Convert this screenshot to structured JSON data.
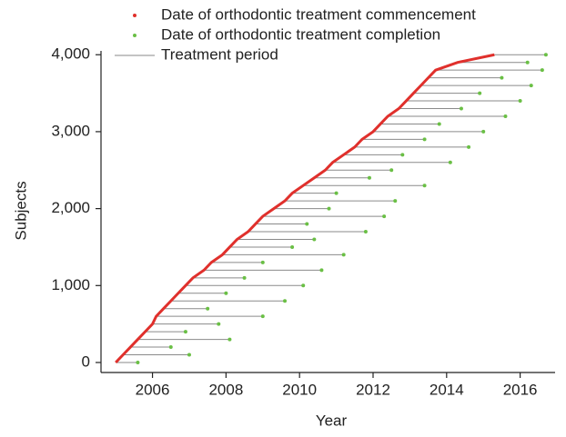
{
  "chart_data": {
    "type": "timeline",
    "x_label": "Year",
    "y_label": "Subjects",
    "xlim": [
      2004.6,
      2016.95
    ],
    "xticks": [
      2006,
      2008,
      2010,
      2012,
      2014,
      2016
    ],
    "ylim": [
      -130,
      4050
    ],
    "yticks": [
      0,
      {
        "value": 1000,
        "label": "1,000"
      },
      {
        "value": 2000,
        "label": "2,000"
      },
      {
        "value": 3000,
        "label": "3,000"
      },
      {
        "value": 4000,
        "label": "4,000"
      }
    ],
    "series": [
      {
        "name": "Date of orthodontic treatment commencement",
        "color": "#e0302c",
        "x": [
          2005.0,
          2005.2,
          2005.4,
          2005.6,
          2005.8,
          2006.0,
          2006.1,
          2006.3,
          2006.5,
          2006.7,
          2006.9,
          2007.1,
          2007.4,
          2007.6,
          2007.9,
          2008.1,
          2008.3,
          2008.6,
          2008.8,
          2009.0,
          2009.3,
          2009.6,
          2009.8,
          2010.1,
          2010.4,
          2010.7,
          2010.9,
          2011.2,
          2011.5,
          2011.7,
          2012.0,
          2012.2,
          2012.4,
          2012.7,
          2012.9,
          2013.1,
          2013.3,
          2013.5,
          2013.7,
          2014.3,
          2015.3
        ],
        "values": [
          0,
          100,
          200,
          300,
          400,
          500,
          600,
          700,
          800,
          900,
          1000,
          1100,
          1200,
          1300,
          1400,
          1500,
          1600,
          1700,
          1800,
          1900,
          2000,
          2100,
          2200,
          2300,
          2400,
          2500,
          2600,
          2700,
          2800,
          2900,
          3000,
          3100,
          3200,
          3300,
          3400,
          3500,
          3600,
          3700,
          3800,
          3900,
          4000
        ]
      },
      {
        "name": "Date of orthodontic treatment completion",
        "color": "#6abf45",
        "x": [
          2005.6,
          2007.0,
          2006.5,
          2008.1,
          2006.9,
          2007.8,
          2009.0,
          2007.5,
          2009.6,
          2008.0,
          2010.1,
          2008.5,
          2010.6,
          2009.0,
          2011.2,
          2009.8,
          2010.4,
          2011.8,
          2010.2,
          2012.3,
          2010.8,
          2012.6,
          2011.0,
          2013.4,
          2011.9,
          2012.5,
          2014.1,
          2012.8,
          2014.6,
          2013.4,
          2015.0,
          2013.8,
          2015.6,
          2014.4,
          2016.0,
          2014.9,
          2016.3,
          2015.5,
          2016.6,
          2016.2,
          2016.7
        ],
        "values": [
          0,
          100,
          200,
          300,
          400,
          500,
          600,
          700,
          800,
          900,
          1000,
          1100,
          1200,
          1300,
          1400,
          1500,
          1600,
          1700,
          1800,
          1900,
          2000,
          2100,
          2200,
          2300,
          2400,
          2500,
          2600,
          2700,
          2800,
          2900,
          3000,
          3100,
          3200,
          3300,
          3400,
          3500,
          3600,
          3700,
          3800,
          3900,
          4000
        ]
      },
      {
        "name": "Treatment period",
        "color": "#8a8a8a"
      }
    ]
  }
}
